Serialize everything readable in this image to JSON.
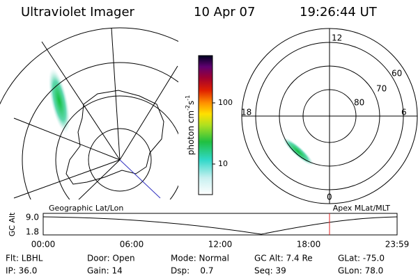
{
  "header": {
    "instrument": "Ultraviolet Imager",
    "date": "10 Apr 07",
    "time": "19:26:44 UT"
  },
  "left_panel": {
    "label": "Geographic Lat/Lon"
  },
  "colorbar": {
    "unit": "photon cm",
    "exp1": "-2",
    "unit2": "s",
    "exp2": "-1",
    "ticks": [
      "100",
      "10"
    ]
  },
  "right_panel": {
    "label": "Apex MLat/MLT",
    "mlt_labels": [
      "12",
      "18",
      "6",
      "0"
    ],
    "lat_labels": [
      "60",
      "70",
      "80"
    ]
  },
  "altitude_plot": {
    "ylabel": "GC Alt",
    "yticks": [
      "9.0",
      "1.8"
    ],
    "xticks": [
      "00:00",
      "06:00",
      "12:00",
      "18:00",
      "23:59"
    ]
  },
  "info": [
    [
      "Flt: LBHL",
      "Door: Open",
      "Mode: Normal",
      "GC Alt: 7.4 Re",
      "GLat: -75.0"
    ],
    [
      "IP: 36.0",
      "Gain: 14",
      "Dsp:    0.7",
      "Seq: 39",
      "GLon: 78.0"
    ]
  ]
}
